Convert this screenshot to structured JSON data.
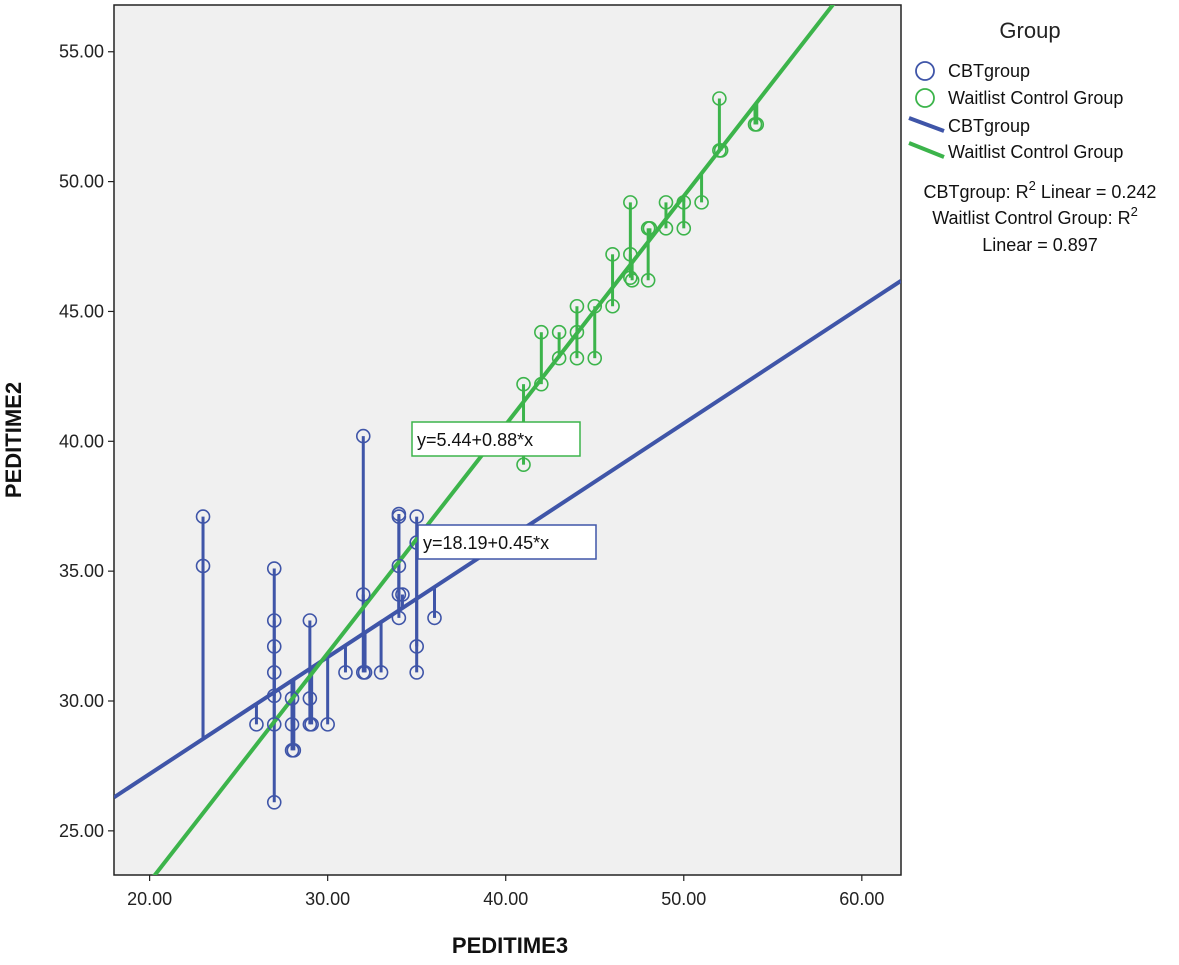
{
  "chart_data": {
    "type": "scatter",
    "xlabel": "PEDITIME3",
    "ylabel": "PEDITIME2",
    "xlim": [
      18,
      62.2
    ],
    "ylim": [
      23.3,
      56.8
    ],
    "x_ticks": [
      "20.00",
      "30.00",
      "40.00",
      "50.00",
      "60.00"
    ],
    "x_tick_values": [
      20,
      30,
      40,
      50,
      60
    ],
    "y_ticks": [
      "25.00",
      "30.00",
      "35.00",
      "40.00",
      "45.00",
      "50.00",
      "55.00"
    ],
    "y_tick_values": [
      25,
      30,
      35,
      40,
      45,
      50,
      55
    ],
    "grid": false,
    "legend_title": "Group",
    "legend_placement": "right",
    "series": [
      {
        "name": "CBTgroup",
        "color": "#3F55A8",
        "marker": "open-circle",
        "fit": {
          "intercept": 18.19,
          "slope": 0.45,
          "label": "y=18.19+0.45*x"
        },
        "points": [
          [
            23,
            37.1
          ],
          [
            23,
            35.2
          ],
          [
            26,
            29.1
          ],
          [
            27,
            35.1
          ],
          [
            27,
            33.1
          ],
          [
            27,
            32.1
          ],
          [
            27,
            31.1
          ],
          [
            27,
            30.2
          ],
          [
            27,
            29.1
          ],
          [
            27,
            26.1
          ],
          [
            28,
            30.1
          ],
          [
            28,
            29.1
          ],
          [
            28,
            28.1
          ],
          [
            28.1,
            28.1
          ],
          [
            29,
            33.1
          ],
          [
            29,
            30.1
          ],
          [
            29,
            29.1
          ],
          [
            29.1,
            29.1
          ],
          [
            30,
            29.1
          ],
          [
            31,
            31.1
          ],
          [
            32,
            40.2
          ],
          [
            32,
            34.1
          ],
          [
            32,
            31.1
          ],
          [
            32.1,
            31.1
          ],
          [
            33,
            31.1
          ],
          [
            34,
            37.2
          ],
          [
            34,
            37.1
          ],
          [
            34,
            35.2
          ],
          [
            34,
            34.1
          ],
          [
            34.2,
            34.1
          ],
          [
            34,
            33.2
          ],
          [
            35,
            37.1
          ],
          [
            35,
            36.1
          ],
          [
            35,
            32.1
          ],
          [
            35,
            31.1
          ],
          [
            36,
            33.2
          ]
        ]
      },
      {
        "name": "Waitlist Control Group",
        "color": "#3CB44B",
        "marker": "open-circle",
        "fit": {
          "intercept": 5.44,
          "slope": 0.88,
          "label": "y=5.44+0.88*x"
        },
        "points": [
          [
            41,
            42.2
          ],
          [
            41,
            39.1
          ],
          [
            42,
            44.2
          ],
          [
            42,
            42.2
          ],
          [
            43,
            44.2
          ],
          [
            43,
            43.2
          ],
          [
            44,
            45.2
          ],
          [
            44,
            44.2
          ],
          [
            44,
            43.2
          ],
          [
            45,
            45.2
          ],
          [
            45,
            43.2
          ],
          [
            46,
            47.2
          ],
          [
            46,
            45.2
          ],
          [
            47,
            49.2
          ],
          [
            47,
            47.2
          ],
          [
            47,
            46.3
          ],
          [
            47.1,
            46.2
          ],
          [
            48,
            48.2
          ],
          [
            48.1,
            48.2
          ],
          [
            48,
            46.2
          ],
          [
            49,
            49.2
          ],
          [
            49,
            48.2
          ],
          [
            50,
            49.2
          ],
          [
            50,
            48.2
          ],
          [
            51,
            49.2
          ],
          [
            52,
            53.2
          ],
          [
            52,
            51.2
          ],
          [
            52.1,
            51.2
          ],
          [
            54,
            52.2
          ],
          [
            54.1,
            52.2
          ]
        ]
      }
    ],
    "annotations": [
      "CBTgroup: R² Linear = 0.242",
      "Waitlist Control Group: R² Linear = 0.897"
    ],
    "r2": {
      "CBTgroup": 0.242,
      "Waitlist Control Group": 0.897
    }
  },
  "legend": {
    "title": "Group",
    "marker_items": [
      "CBTgroup",
      "Waitlist Control Group"
    ],
    "line_items": [
      "CBTgroup",
      "Waitlist Control Group"
    ],
    "r2_line1": "CBTgroup: R",
    "r2_line1_sup": "2",
    "r2_line1_tail": " Linear = 0.242",
    "r2_line2": "Waitlist Control Group: R",
    "r2_line2_sup": "2",
    "r2_line3": "Linear = 0.897"
  }
}
